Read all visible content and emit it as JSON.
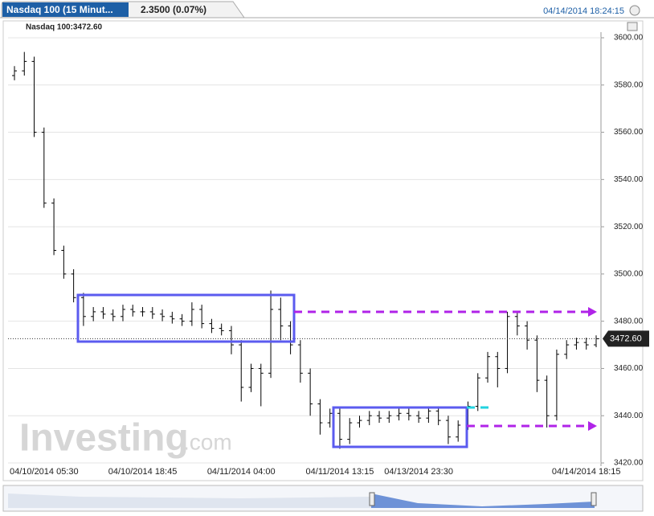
{
  "chart_data": {
    "type": "ohlc",
    "title": "Nasdaq 100 (15 Minut...",
    "change": "2.3500 (0.07%)",
    "timestamp": "04/14/2014 18:24:15",
    "legend": "Nasdaq 100:3472.60",
    "price_tag": "3472.60",
    "watermark": "Investing",
    "watermark_suffix": ".com",
    "color": "#000000",
    "grid": true,
    "ylim": [
      3420,
      3600
    ],
    "yticks": [
      {
        "value": 3420,
        "label": "3420.00"
      },
      {
        "value": 3440,
        "label": "3440.00"
      },
      {
        "value": 3460,
        "label": "3460.00"
      },
      {
        "value": 3480,
        "label": "3480.00"
      },
      {
        "value": 3500,
        "label": "3500.00"
      },
      {
        "value": 3520,
        "label": "3520.00"
      },
      {
        "value": 3540,
        "label": "3540.00"
      },
      {
        "value": 3560,
        "label": "3560.00"
      },
      {
        "value": 3580,
        "label": "3580.00"
      },
      {
        "value": 3600,
        "label": "3600.00"
      }
    ],
    "categories": [
      null,
      null,
      null,
      "04/10/2014 05:30",
      null,
      null,
      null,
      null,
      null,
      null,
      null,
      null,
      null,
      "04/10/2014 18:45",
      null,
      null,
      null,
      null,
      null,
      null,
      null,
      null,
      null,
      "04/11/2014 04:00",
      null,
      null,
      null,
      null,
      null,
      null,
      null,
      null,
      null,
      "04/11/2014 13:15",
      null,
      null,
      null,
      null,
      null,
      null,
      null,
      "04/13/2014 23:30",
      null,
      null,
      null,
      null,
      null,
      null,
      null,
      null,
      null,
      null,
      null,
      null,
      null,
      null,
      null,
      null,
      "04/14/2014 18:15",
      null
    ],
    "open": [
      3584,
      3586,
      3590,
      3560,
      3530,
      3510,
      3500,
      3490,
      3482,
      3484,
      3483,
      3482,
      3485,
      3484,
      3484,
      3483,
      3482,
      3481,
      3480,
      3485,
      3479,
      3477,
      3476,
      3470,
      3452,
      3460,
      3458,
      3485,
      3478,
      3470,
      3458,
      3445,
      3437,
      3441,
      3430,
      3437,
      3438,
      3440,
      3439,
      3440,
      3441,
      3440,
      3439,
      3442,
      3438,
      3431,
      3436,
      3444,
      3456,
      3465,
      3460,
      3482,
      3478,
      3472,
      3455,
      3440,
      3466,
      3470,
      3471,
      3470
    ],
    "high": [
      3588,
      3594,
      3592,
      3562,
      3532,
      3512,
      3502,
      3492,
      3486,
      3486,
      3485,
      3487,
      3487,
      3486,
      3486,
      3485,
      3484,
      3483,
      3488,
      3487,
      3481,
      3479,
      3478,
      3472,
      3462,
      3462,
      3493,
      3490,
      3480,
      3472,
      3460,
      3447,
      3443,
      3443,
      3439,
      3440,
      3442,
      3442,
      3442,
      3443,
      3443,
      3442,
      3444,
      3444,
      3440,
      3438,
      3446,
      3458,
      3467,
      3467,
      3484,
      3484,
      3480,
      3474,
      3457,
      3468,
      3472,
      3473,
      3473,
      3474
    ],
    "low": [
      3582,
      3584,
      3558,
      3528,
      3508,
      3498,
      3488,
      3478,
      3480,
      3481,
      3480,
      3480,
      3482,
      3482,
      3481,
      3480,
      3479,
      3478,
      3478,
      3477,
      3475,
      3474,
      3466,
      3446,
      3450,
      3444,
      3456,
      3472,
      3466,
      3454,
      3440,
      3432,
      3435,
      3426,
      3428,
      3435,
      3436,
      3437,
      3437,
      3438,
      3438,
      3437,
      3437,
      3436,
      3428,
      3429,
      3434,
      3442,
      3454,
      3452,
      3458,
      3474,
      3468,
      3450,
      3435,
      3438,
      3464,
      3468,
      3468,
      3469
    ],
    "close": [
      3586,
      3590,
      3560,
      3530,
      3510,
      3500,
      3490,
      3482,
      3484,
      3483,
      3482,
      3485,
      3484,
      3484,
      3483,
      3482,
      3481,
      3480,
      3485,
      3479,
      3477,
      3476,
      3470,
      3452,
      3460,
      3458,
      3485,
      3478,
      3470,
      3458,
      3445,
      3437,
      3441,
      3430,
      3437,
      3438,
      3440,
      3439,
      3440,
      3441,
      3440,
      3439,
      3442,
      3438,
      3431,
      3436,
      3444,
      3456,
      3465,
      3460,
      3482,
      3478,
      3472,
      3455,
      3440,
      3466,
      3470,
      3471,
      3470,
      3472.6
    ]
  }
}
